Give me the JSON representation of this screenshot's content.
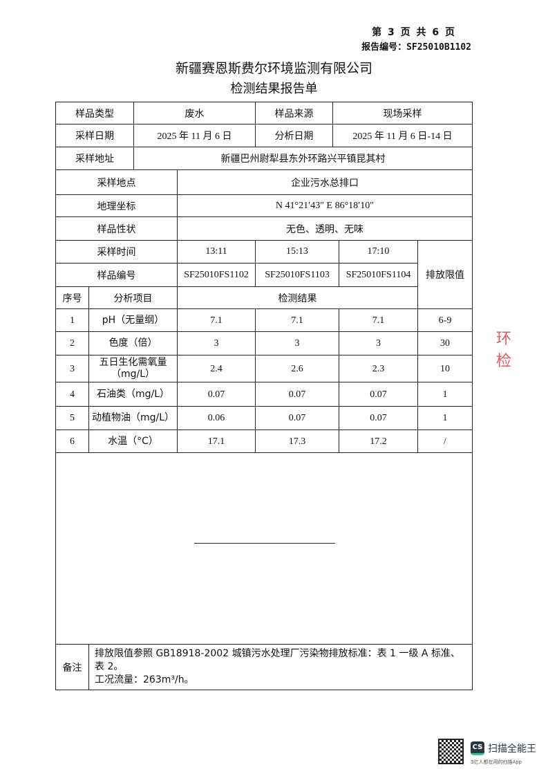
{
  "header": {
    "page": "第 3 页 共 6 页",
    "report_no": "报告编号：SF25010B1102",
    "company": "新疆赛恩斯费尔环境监测有限公司",
    "title": "检测结果报告单"
  },
  "info": {
    "sample_type_label": "样品类型",
    "sample_type": "废水",
    "sample_source_label": "样品来源",
    "sample_source": "现场采样",
    "sampling_date_label": "采样日期",
    "sampling_date": "2025 年 11 月 6 日",
    "analysis_date_label": "分析日期",
    "analysis_date": "2025 年 11 月 6 日-14 日",
    "address_label": "采样地址",
    "address": "新疆巴州尉犁县东外环路兴平镇昆其村",
    "site_label": "采样地点",
    "site": "企业污水总排口",
    "coords_label": "地理坐标",
    "coords": "N 41°21′43″   E 86°18′10″",
    "character_label": "样品性状",
    "character": "无色、透明、无味",
    "time_label": "采样时间",
    "times": [
      "13:11",
      "15:13",
      "17:10"
    ],
    "code_label": "样品编号",
    "codes": [
      "SF25010FS1102",
      "SF25010FS1103",
      "SF25010FS1104"
    ],
    "limit_label": "排放限值"
  },
  "results": {
    "seq_label": "序号",
    "item_label": "分析项目",
    "result_label": "检测结果",
    "rows": [
      {
        "seq": "1",
        "item": "pH（无量纲）",
        "v": [
          "7.1",
          "7.1",
          "7.1"
        ],
        "limit": "6-9"
      },
      {
        "seq": "2",
        "item": "色度（倍）",
        "v": [
          "3",
          "3",
          "3"
        ],
        "limit": "30"
      },
      {
        "seq": "3",
        "item": "五日生化需氧量\n（mg/L）",
        "v": [
          "2.4",
          "2.6",
          "2.3"
        ],
        "limit": "10"
      },
      {
        "seq": "4",
        "item": "石油类（mg/L）",
        "v": [
          "0.07",
          "0.07",
          "0.07"
        ],
        "limit": "1"
      },
      {
        "seq": "5",
        "item": "动植物油（mg/L）",
        "v": [
          "0.06",
          "0.07",
          "0.07"
        ],
        "limit": "1"
      },
      {
        "seq": "6",
        "item": "水温（°C）",
        "v": [
          "17.1",
          "17.3",
          "17.2"
        ],
        "limit": "/"
      }
    ]
  },
  "remark": {
    "label": "备注",
    "line1": "排放限值参照 GB18918-2002 城镇污水处理厂污染物排放标准：表 1 一级 A 标准、表 2。",
    "line2": "工况流量：263m³/h。"
  },
  "stamp": {
    "text": "环 检"
  },
  "scanner": {
    "name": "扫描全能王",
    "logo": "CS",
    "tagline": "3亿人都在用的扫描App"
  }
}
